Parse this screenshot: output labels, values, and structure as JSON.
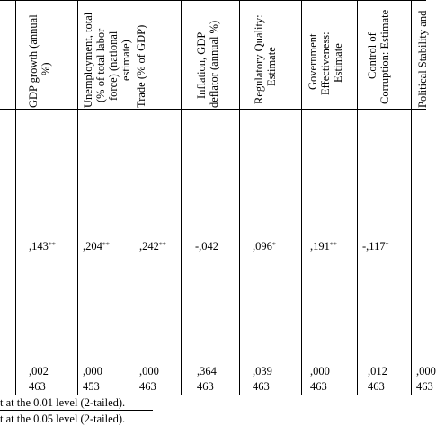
{
  "columns": [
    {
      "header_lines": [
        "GDP growth (annual",
        "%)"
      ],
      "value": ",143",
      "sup": "**",
      "sig": ",002",
      "n": "463"
    },
    {
      "header_lines": [
        "Unemployment, total",
        "(% of total labor",
        "force) (national",
        "estimate)"
      ],
      "value": ",204",
      "sup": "**",
      "sig": ",000",
      "n": "453"
    },
    {
      "header_lines": [
        "Trade (% of GDP)"
      ],
      "value": ",242",
      "sup": "**",
      "sig": ",000",
      "n": "463"
    },
    {
      "header_lines": [
        "Inflation, GDP",
        "deflator (annual %)"
      ],
      "value": "-,042",
      "sup": "",
      "sig": ",364",
      "n": "463"
    },
    {
      "header_lines": [
        "Regulatory Quality:",
        "Estimate"
      ],
      "value": ",096",
      "sup": "*",
      "sig": ",039",
      "n": "463"
    },
    {
      "header_lines": [
        "Government",
        "Effectiveness:",
        "Estimate"
      ],
      "value": ",191",
      "sup": "**",
      "sig": ",000",
      "n": "463"
    },
    {
      "header_lines": [
        "Control of",
        "Corruption: Estimate"
      ],
      "value": "-,117",
      "sup": "*",
      "sig": ",012",
      "n": "463"
    },
    {
      "header_lines": [
        "Political Stability and"
      ],
      "value": "",
      "sup": "",
      "sig": ",000",
      "n": "463"
    }
  ],
  "footnotes": [
    "t at the 0.01 level (2-tailed).",
    "t at the 0.05 level (2-tailed)."
  ]
}
